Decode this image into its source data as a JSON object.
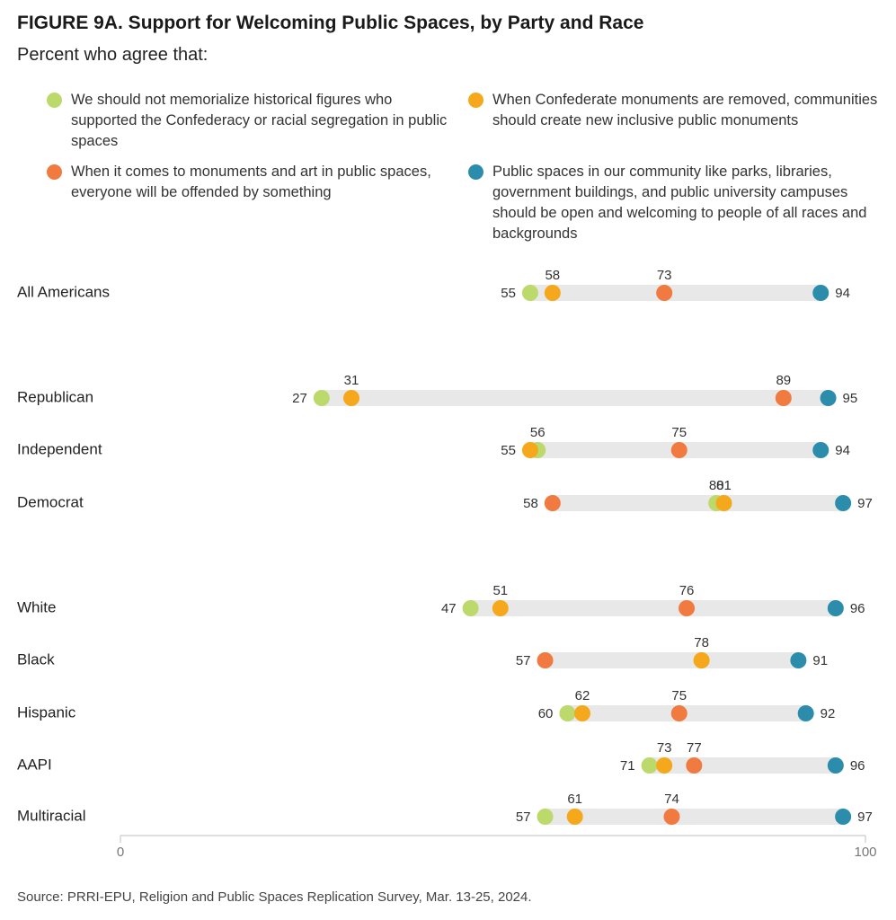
{
  "title": "FIGURE 9A. Support for Welcoming Public Spaces, by Party and Race",
  "subtitle": "Percent who agree that:",
  "source": "Source: PRRI-EPU, Religion and Public Spaces Replication Survey, Mar. 13-25, 2024.",
  "chart_data": {
    "type": "dot-range",
    "xlim": [
      0,
      100
    ],
    "tick_labels": [
      "0",
      "100"
    ],
    "series": [
      {
        "name": "We should not memorialize historical figures who supported the Confederacy or racial segregation in public spaces",
        "color": "#bcd96b",
        "legend_position": "top-left"
      },
      {
        "name": "When Confederate monuments are removed, communities should create new inclusive public monuments",
        "color": "#f5a81c",
        "legend_position": "top-right"
      },
      {
        "name": "When it comes to monuments and art in public spaces, everyone will be offended by something",
        "color": "#f07a3f",
        "legend_position": "middle-left"
      },
      {
        "name": "Public spaces in our community like parks, libraries, government buildings, and public university campuses should be open and welcoming to people of all races and backgrounds",
        "color": "#2b8dab",
        "legend_position": "middle-right"
      }
    ],
    "rows": [
      {
        "label": "All Americans",
        "group": 0,
        "values": [
          55,
          58,
          73,
          94
        ]
      },
      {
        "label": "Republican",
        "group": 1,
        "values": [
          27,
          31,
          89,
          95
        ]
      },
      {
        "label": "Independent",
        "group": 1,
        "values": [
          56,
          55,
          75,
          94
        ]
      },
      {
        "label": "Democrat",
        "group": 1,
        "values": [
          80,
          81,
          58,
          97
        ]
      },
      {
        "label": "White",
        "group": 2,
        "values": [
          47,
          51,
          76,
          96
        ]
      },
      {
        "label": "Black",
        "group": 2,
        "values": [
          78,
          78,
          57,
          91
        ]
      },
      {
        "label": "Hispanic",
        "group": 2,
        "values": [
          60,
          62,
          75,
          92
        ]
      },
      {
        "label": "AAPI",
        "group": 2,
        "values": [
          71,
          73,
          77,
          96
        ]
      },
      {
        "label": "Multiracial",
        "group": 2,
        "values": [
          57,
          61,
          74,
          97
        ]
      }
    ]
  }
}
